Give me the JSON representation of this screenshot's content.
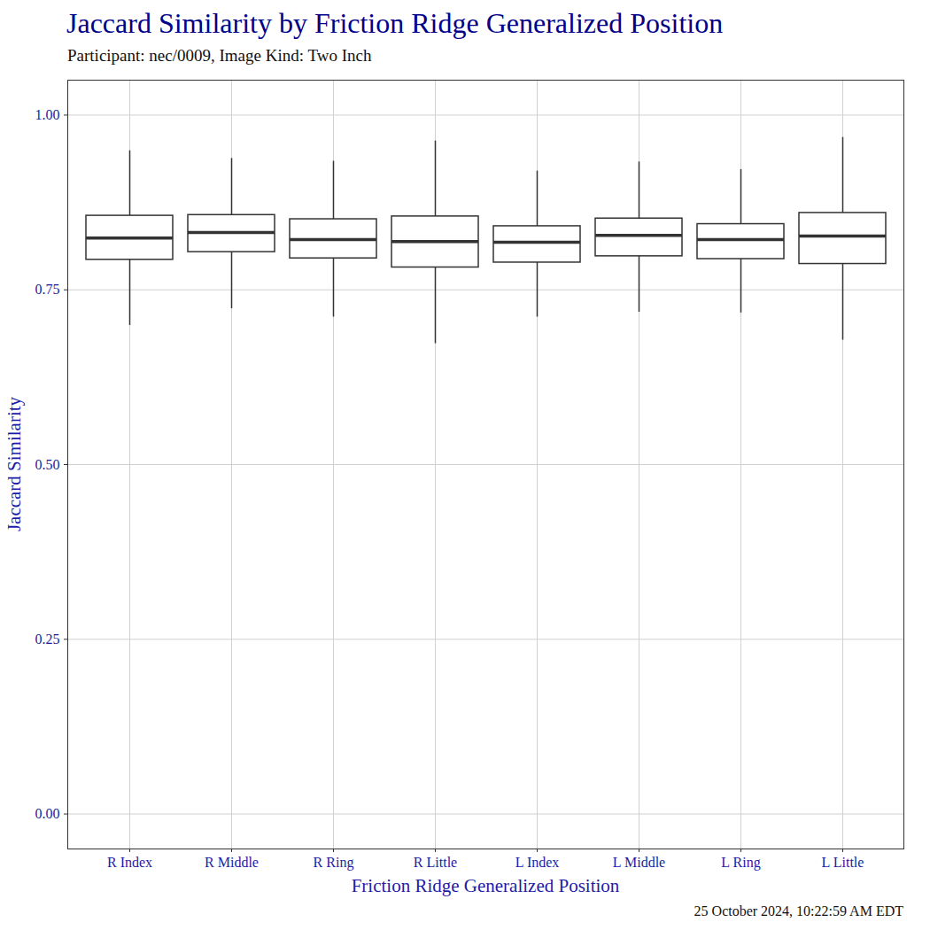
{
  "chart_data": {
    "type": "box",
    "title": "Jaccard Similarity by Friction Ridge Generalized Position",
    "subtitle": "Participant: nec/0009, Image Kind: Two Inch",
    "caption": "25 October 2024, 10:22:59 AM EDT",
    "xlabel": "Friction Ridge Generalized Position",
    "ylabel": "Jaccard Similarity",
    "categories": [
      "R Index",
      "R Middle",
      "R Ring",
      "R Little",
      "L Index",
      "L Middle",
      "L Ring",
      "L Little"
    ],
    "whisker_low": [
      0.699,
      0.723,
      0.711,
      0.673,
      0.711,
      0.718,
      0.717,
      0.678
    ],
    "q1": [
      0.793,
      0.804,
      0.795,
      0.782,
      0.789,
      0.798,
      0.794,
      0.787
    ],
    "median": [
      0.824,
      0.832,
      0.822,
      0.819,
      0.818,
      0.828,
      0.822,
      0.827
    ],
    "q3": [
      0.856,
      0.857,
      0.851,
      0.855,
      0.841,
      0.852,
      0.844,
      0.86
    ],
    "whisker_high": [
      0.949,
      0.938,
      0.934,
      0.963,
      0.92,
      0.933,
      0.922,
      0.968
    ],
    "ylim": [
      -0.05,
      1.05
    ],
    "yticks": [
      {
        "value": 0,
        "label": "0.00"
      },
      0.25,
      {
        "value": 0.5,
        "label": "0.50"
      },
      0.75,
      {
        "value": 1,
        "label": "1.00"
      }
    ],
    "grid": true
  }
}
